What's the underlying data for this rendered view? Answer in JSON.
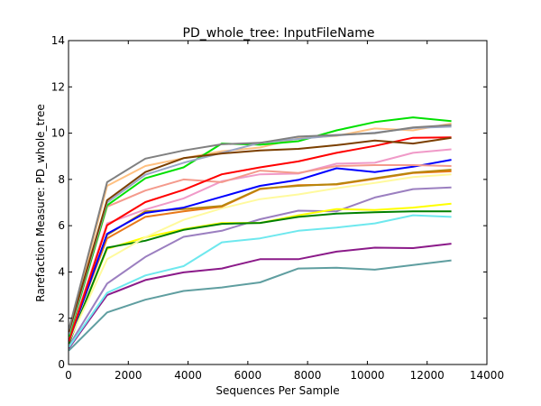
{
  "chart_data": {
    "type": "line",
    "title": "PD_whole_tree: InputFileName",
    "xlabel": "Sequences Per Sample",
    "ylabel": "Rarefaction Measure: PD_whole_tree",
    "xlim": [
      0,
      14000
    ],
    "ylim": [
      0,
      14
    ],
    "xticks": [
      0,
      2000,
      4000,
      6000,
      8000,
      10000,
      12000,
      14000
    ],
    "yticks": [
      0,
      2,
      4,
      6,
      8,
      10,
      12,
      14
    ],
    "grid": false,
    "x": [
      10,
      1290,
      2570,
      3850,
      5130,
      6410,
      7690,
      8970,
      10250,
      11530,
      12810
    ],
    "series": [
      {
        "color": "#5f9ea0",
        "values": [
          0.6,
          2.25,
          2.8,
          3.18,
          3.33,
          3.55,
          4.15,
          4.18,
          4.1,
          4.3,
          4.5
        ]
      },
      {
        "color": "#8b1a89",
        "values": [
          0.7,
          3.0,
          3.65,
          3.98,
          4.15,
          4.55,
          4.55,
          4.88,
          5.05,
          5.03,
          5.22
        ]
      },
      {
        "color": "#9b7fc0",
        "values": [
          0.8,
          3.5,
          4.65,
          5.52,
          5.78,
          6.28,
          6.65,
          6.62,
          7.22,
          7.58,
          7.65
        ]
      },
      {
        "color": "#6ee8ee",
        "values": [
          0.75,
          3.1,
          3.85,
          4.25,
          5.28,
          5.45,
          5.78,
          5.92,
          6.1,
          6.45,
          6.38
        ]
      },
      {
        "color": "#ffff00",
        "values": [
          0.9,
          5.0,
          5.5,
          5.85,
          6.12,
          6.12,
          6.45,
          6.72,
          6.68,
          6.78,
          6.95
        ]
      },
      {
        "color": "#008000",
        "values": [
          0.9,
          5.05,
          5.35,
          5.82,
          6.08,
          6.12,
          6.38,
          6.52,
          6.58,
          6.62,
          6.62
        ]
      },
      {
        "color": "#fffa9e",
        "values": [
          1.0,
          4.55,
          5.5,
          6.25,
          6.75,
          7.15,
          7.35,
          7.62,
          7.85,
          8.1,
          8.22
        ]
      },
      {
        "color": "#e87818",
        "values": [
          1.1,
          5.45,
          6.38,
          6.62,
          6.82,
          7.58,
          7.75,
          7.78,
          8.02,
          8.28,
          8.35
        ]
      },
      {
        "color": "#b8860b",
        "values": [
          1.1,
          5.6,
          6.62,
          6.72,
          6.85,
          7.6,
          7.72,
          7.8,
          8.05,
          8.3,
          8.42
        ]
      },
      {
        "color": "#0000ff",
        "values": [
          1.0,
          5.65,
          6.55,
          6.78,
          7.25,
          7.72,
          7.98,
          8.48,
          8.32,
          8.55,
          8.85
        ]
      },
      {
        "color": "#f09ac8",
        "values": [
          1.1,
          6.1,
          6.7,
          7.18,
          7.92,
          8.22,
          8.25,
          8.68,
          8.72,
          9.15,
          9.3
        ]
      },
      {
        "color": "#f49a8c",
        "values": [
          1.2,
          6.82,
          7.52,
          8.0,
          7.88,
          8.38,
          8.28,
          8.58,
          8.62,
          8.62,
          8.58
        ]
      },
      {
        "color": "#ff0000",
        "values": [
          1.0,
          6.02,
          7.02,
          7.55,
          8.22,
          8.52,
          8.78,
          9.15,
          9.45,
          9.8,
          9.82
        ]
      },
      {
        "color": "#ffc080",
        "values": [
          1.3,
          7.72,
          8.58,
          8.92,
          9.22,
          9.38,
          9.78,
          9.88,
          10.2,
          10.12,
          10.42
        ]
      },
      {
        "color": "#00e000",
        "values": [
          1.2,
          6.88,
          8.05,
          8.52,
          9.55,
          9.5,
          9.65,
          10.12,
          10.48,
          10.68,
          10.52
        ]
      },
      {
        "color": "#9aa6c6",
        "values": [
          1.3,
          7.0,
          8.2,
          8.72,
          9.15,
          9.58,
          9.75,
          9.9,
          10.02,
          10.22,
          10.28
        ]
      },
      {
        "color": "#7b3f00",
        "values": [
          1.4,
          7.1,
          8.32,
          8.92,
          9.12,
          9.25,
          9.32,
          9.48,
          9.68,
          9.55,
          9.8
        ]
      },
      {
        "color": "#808080",
        "values": [
          1.5,
          7.88,
          8.9,
          9.25,
          9.52,
          9.58,
          9.85,
          9.92,
          10.0,
          10.25,
          10.35
        ]
      }
    ]
  }
}
